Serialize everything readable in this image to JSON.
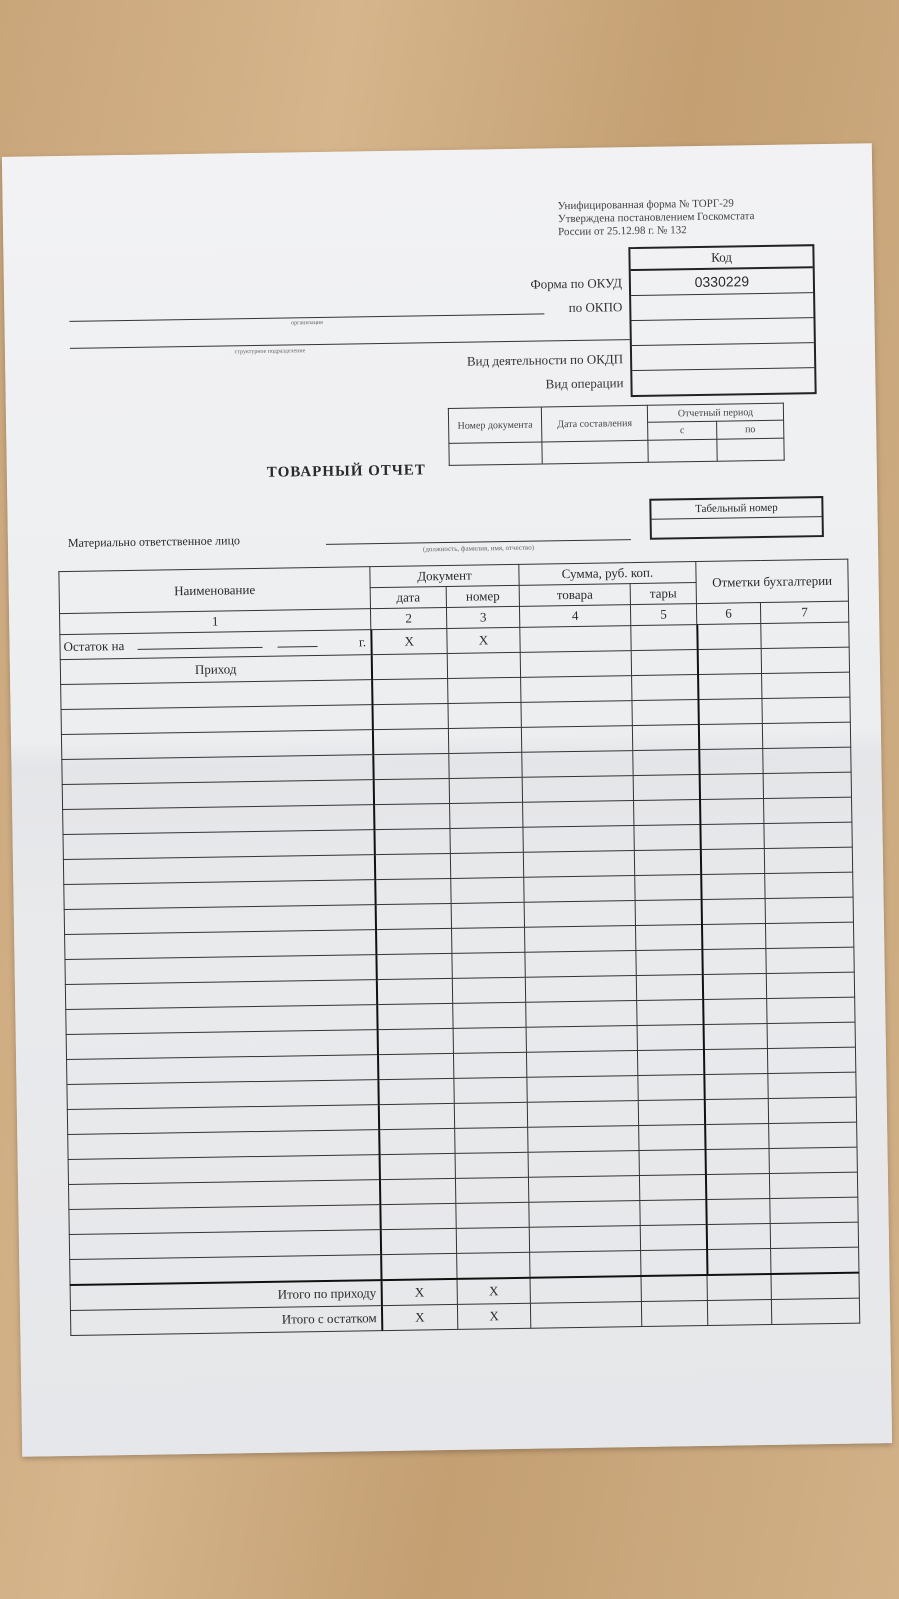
{
  "form_header": {
    "line1": "Унифицированная форма № ТОРГ-29",
    "line2": "Утверждена постановлением Госкомстата",
    "line3": "России от 25.12.98 г. № 132"
  },
  "codes": {
    "header": "Код",
    "okud_label": "Форма по ОКУД",
    "okud_value": "0330229",
    "okpo_label": "по ОКПО",
    "okdp_label": "Вид деятельности по ОКДП",
    "operation_label": "Вид операции"
  },
  "org": {
    "organization_caption": "организация",
    "division_caption": "структурное подразделение"
  },
  "doc_table": {
    "number": "Номер документа",
    "date": "Дата составления",
    "period": "Отчетный период",
    "from": "с",
    "to": "по"
  },
  "title": "ТОВАРНЫЙ ОТЧЕТ",
  "tab_number": "Табельный номер",
  "responsible": {
    "label": "Материально ответственное лицо",
    "caption": "(должность, фамилия, имя, отчество)"
  },
  "table": {
    "name": "Наименование",
    "document": "Документ",
    "date": "дата",
    "number": "номер",
    "sum": "Сумма, руб. коп.",
    "goods": "товара",
    "container": "тары",
    "marks": "Отметки бухгалтерии",
    "col_numbers": [
      "1",
      "2",
      "3",
      "4",
      "5",
      "6",
      "7"
    ],
    "balance_label": "Остаток на",
    "year_suffix": "г.",
    "x": "X",
    "income": "Приход",
    "total_income": "Итого по приходу",
    "total_with_balance": "Итого с остатком"
  }
}
